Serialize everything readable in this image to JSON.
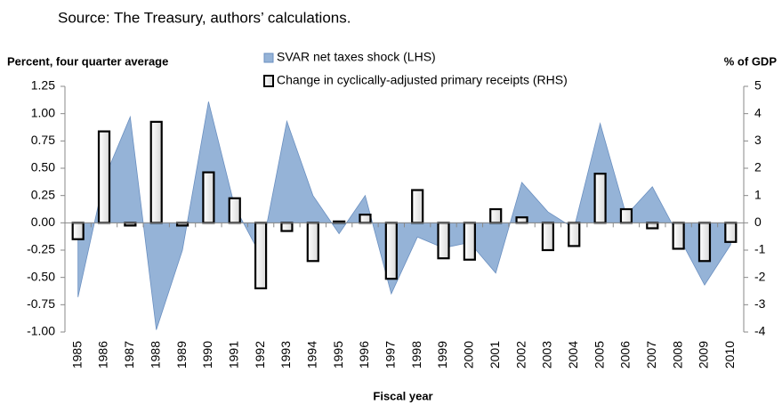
{
  "chart_data": {
    "type": "area-bar",
    "subtitle": "Source: The Treasury, authors’ calculations.",
    "ylabel": "Percent, four quarter average",
    "y2label": "% of GDP",
    "xlabel": "Fiscal year",
    "categories": [
      "1985",
      "1986",
      "1987",
      "1988",
      "1989",
      "1990",
      "1991",
      "1992",
      "1993",
      "1994",
      "1995",
      "1996",
      "1997",
      "1998",
      "1999",
      "2000",
      "2001",
      "2002",
      "2003",
      "2004",
      "2005",
      "2006",
      "2007",
      "2008",
      "2009",
      "2010"
    ],
    "series": [
      {
        "name": "SVAR net taxes shock (LHS)",
        "type": "area",
        "color": "#95b3d7",
        "values": [
          -0.68,
          0.4,
          0.97,
          -0.98,
          -0.25,
          1.11,
          0.15,
          -0.3,
          0.93,
          0.25,
          -0.1,
          0.25,
          -0.65,
          -0.13,
          -0.23,
          -0.18,
          -0.46,
          0.37,
          0.1,
          -0.05,
          0.91,
          0.07,
          0.33,
          -0.12,
          -0.57,
          -0.2
        ]
      },
      {
        "name": "Change in cyclically-adjusted primary receipts (RHS)",
        "type": "bar",
        "axis": "y2",
        "color": "#f2f2f2",
        "values": [
          -0.6,
          3.35,
          -0.1,
          3.7,
          -0.1,
          1.85,
          0.9,
          -2.4,
          -0.3,
          -1.4,
          0.05,
          0.3,
          -2.05,
          1.2,
          -1.3,
          -1.35,
          0.5,
          0.2,
          -1.0,
          -0.85,
          1.8,
          0.5,
          -0.2,
          -0.95,
          -1.4,
          -0.7
        ]
      }
    ],
    "ylim": [
      -1,
      1.25
    ],
    "yticks": [
      {
        "value": 1.25,
        "label": "1.25"
      },
      {
        "value": 1,
        "label": "1.00"
      },
      {
        "value": 0.75,
        "label": "0.75"
      },
      {
        "value": 0.5,
        "label": "0.50"
      },
      0.25,
      {
        "value": 0,
        "label": "0.00"
      },
      -0.25,
      {
        "value": -0.5,
        "label": "-0.50"
      },
      -0.75,
      {
        "value": -1,
        "label": "-1.00"
      }
    ],
    "y2lim": [
      -4,
      5
    ],
    "y2ticks": [
      5,
      4,
      3,
      2,
      1,
      0,
      -1,
      -2,
      -3,
      -4
    ]
  }
}
